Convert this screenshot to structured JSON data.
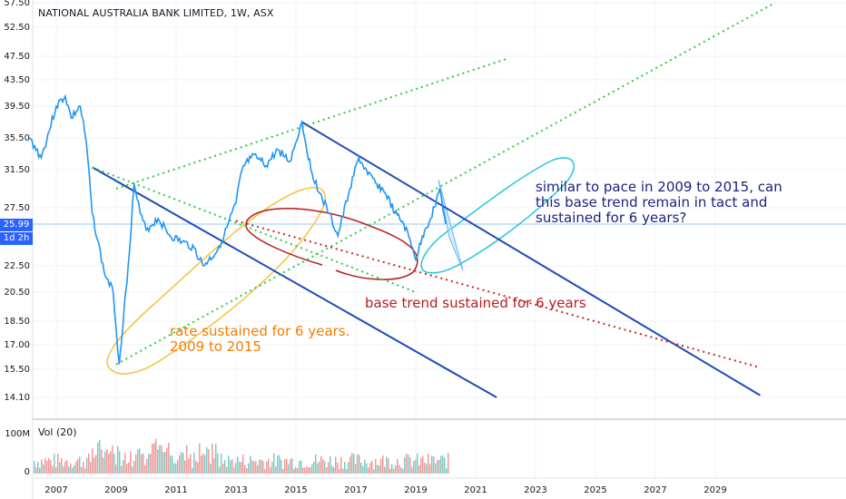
{
  "title": "NATIONAL AUSTRALIA BANK LIMITED, 1W, ASX",
  "volume_label": "Vol (20)",
  "current_price_tag": "25.99",
  "timeframe_tag": "1d 2h",
  "annotations": {
    "orange": [
      "rate sustained for 6 years.",
      "2009 to 2015"
    ],
    "red": "base trend sustained for 6 years",
    "blue": "similar to pace in 2009 to 2015, can this base trend remain in tact and sustained for 6 years?"
  },
  "colors": {
    "price_line": "#2196f3",
    "channel_lines": "#1e4bb8",
    "green_dotted": "#2ecc40",
    "red_dotted": "#c62828",
    "orange_ellipse": "#f5c242",
    "cyan_ellipse": "#26c6da",
    "red_ellipse": "#b71c1c",
    "price_tag": "#2962ff"
  },
  "chart_data": {
    "type": "line",
    "y_ticks": [
      "57.50",
      "52.50",
      "47.50",
      "43.50",
      "39.50",
      "35.50",
      "31.50",
      "27.50",
      "25.99",
      "22.50",
      "20.50",
      "18.50",
      "17.00",
      "15.50",
      "14.10"
    ],
    "x_ticks": [
      "2007",
      "2009",
      "2011",
      "2013",
      "2015",
      "2017",
      "2019",
      "2021",
      "2023",
      "2025",
      "2027",
      "2029"
    ],
    "vol_ticks": [
      "100M",
      "0"
    ],
    "series": [
      {
        "x": [
          2006.1,
          2006.5,
          2007.0,
          2007.3,
          2007.5,
          2007.8,
          2008.0,
          2008.2,
          2008.6,
          2008.9,
          2009.1,
          2009.4,
          2009.6,
          2009.8,
          2010.0,
          2010.4,
          2010.8,
          2011.2,
          2011.6,
          2011.9,
          2012.3,
          2012.6,
          2013.0,
          2013.2,
          2013.5,
          2013.7,
          2014.0,
          2014.4,
          2014.8,
          2015.2,
          2015.5,
          2015.8,
          2016.1,
          2016.4,
          2016.8,
          2017.1,
          2017.4,
          2017.7,
          2018.0,
          2018.3,
          2018.6,
          2018.9,
          2019.0,
          2019.3,
          2019.5,
          2019.8,
          2020.0
        ],
        "y": [
          35.5,
          33,
          39.5,
          41,
          38,
          39.5,
          35,
          27,
          22,
          20.5,
          15.8,
          22.5,
          30,
          27,
          25.5,
          26.5,
          25,
          24.5,
          24,
          22.5,
          23.5,
          25,
          28,
          31.5,
          33,
          33,
          32,
          34,
          32.5,
          37.5,
          31.5,
          29,
          27,
          25,
          29.5,
          33,
          31,
          30,
          29,
          27,
          26,
          24,
          23,
          25.5,
          26.5,
          29.5,
          26
        ]
      }
    ],
    "trendlines": [
      {
        "name": "",
        "x": [
          2008.2,
          2021.7
        ],
        "y": [
          31.8,
          14.1
        ]
      },
      {
        "name": "",
        "x": [
          2015.2,
          2030.5
        ],
        "y": [
          37.5,
          14.2
        ]
      },
      {
        "name": "",
        "x": [
          2008.2,
          2019.0
        ],
        "y": [
          31.8,
          20.5
        ]
      },
      {
        "name": "",
        "x": [
          2009.0,
          2031.0
        ],
        "y": [
          15.8,
          57.5
        ]
      },
      {
        "name": "",
        "x": [
          2009.0,
          2022.0
        ],
        "y": [
          29.5,
          47.0
        ]
      },
      {
        "name": "",
        "x": [
          2013.0,
          2030.5
        ],
        "y": [
          26.3,
          15.6
        ]
      }
    ]
  }
}
